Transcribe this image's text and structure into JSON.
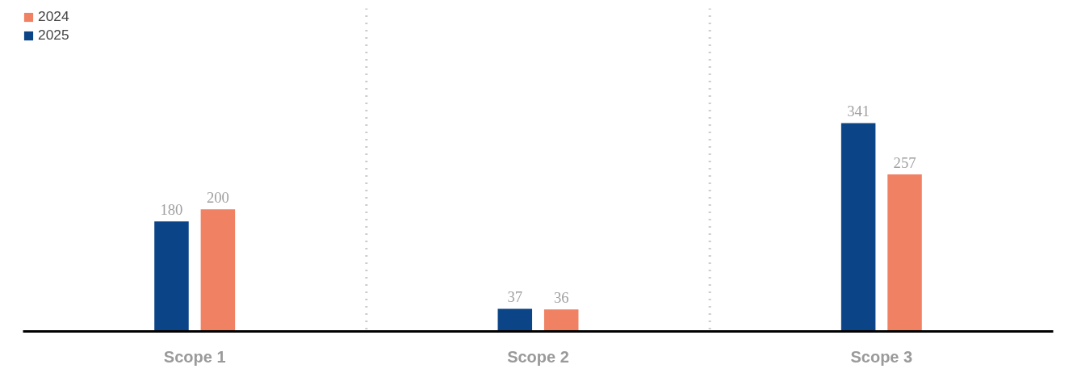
{
  "chart_data": {
    "type": "bar",
    "categories": [
      "Scope 1",
      "Scope 2",
      "Scope 3"
    ],
    "series": [
      {
        "name": "2024",
        "color": "#f08263",
        "values": [
          200,
          36,
          257
        ]
      },
      {
        "name": "2025",
        "color": "#0c4587",
        "values": [
          180,
          37,
          341
        ]
      }
    ],
    "data_labels": true,
    "grid": false,
    "legend": "top left"
  }
}
